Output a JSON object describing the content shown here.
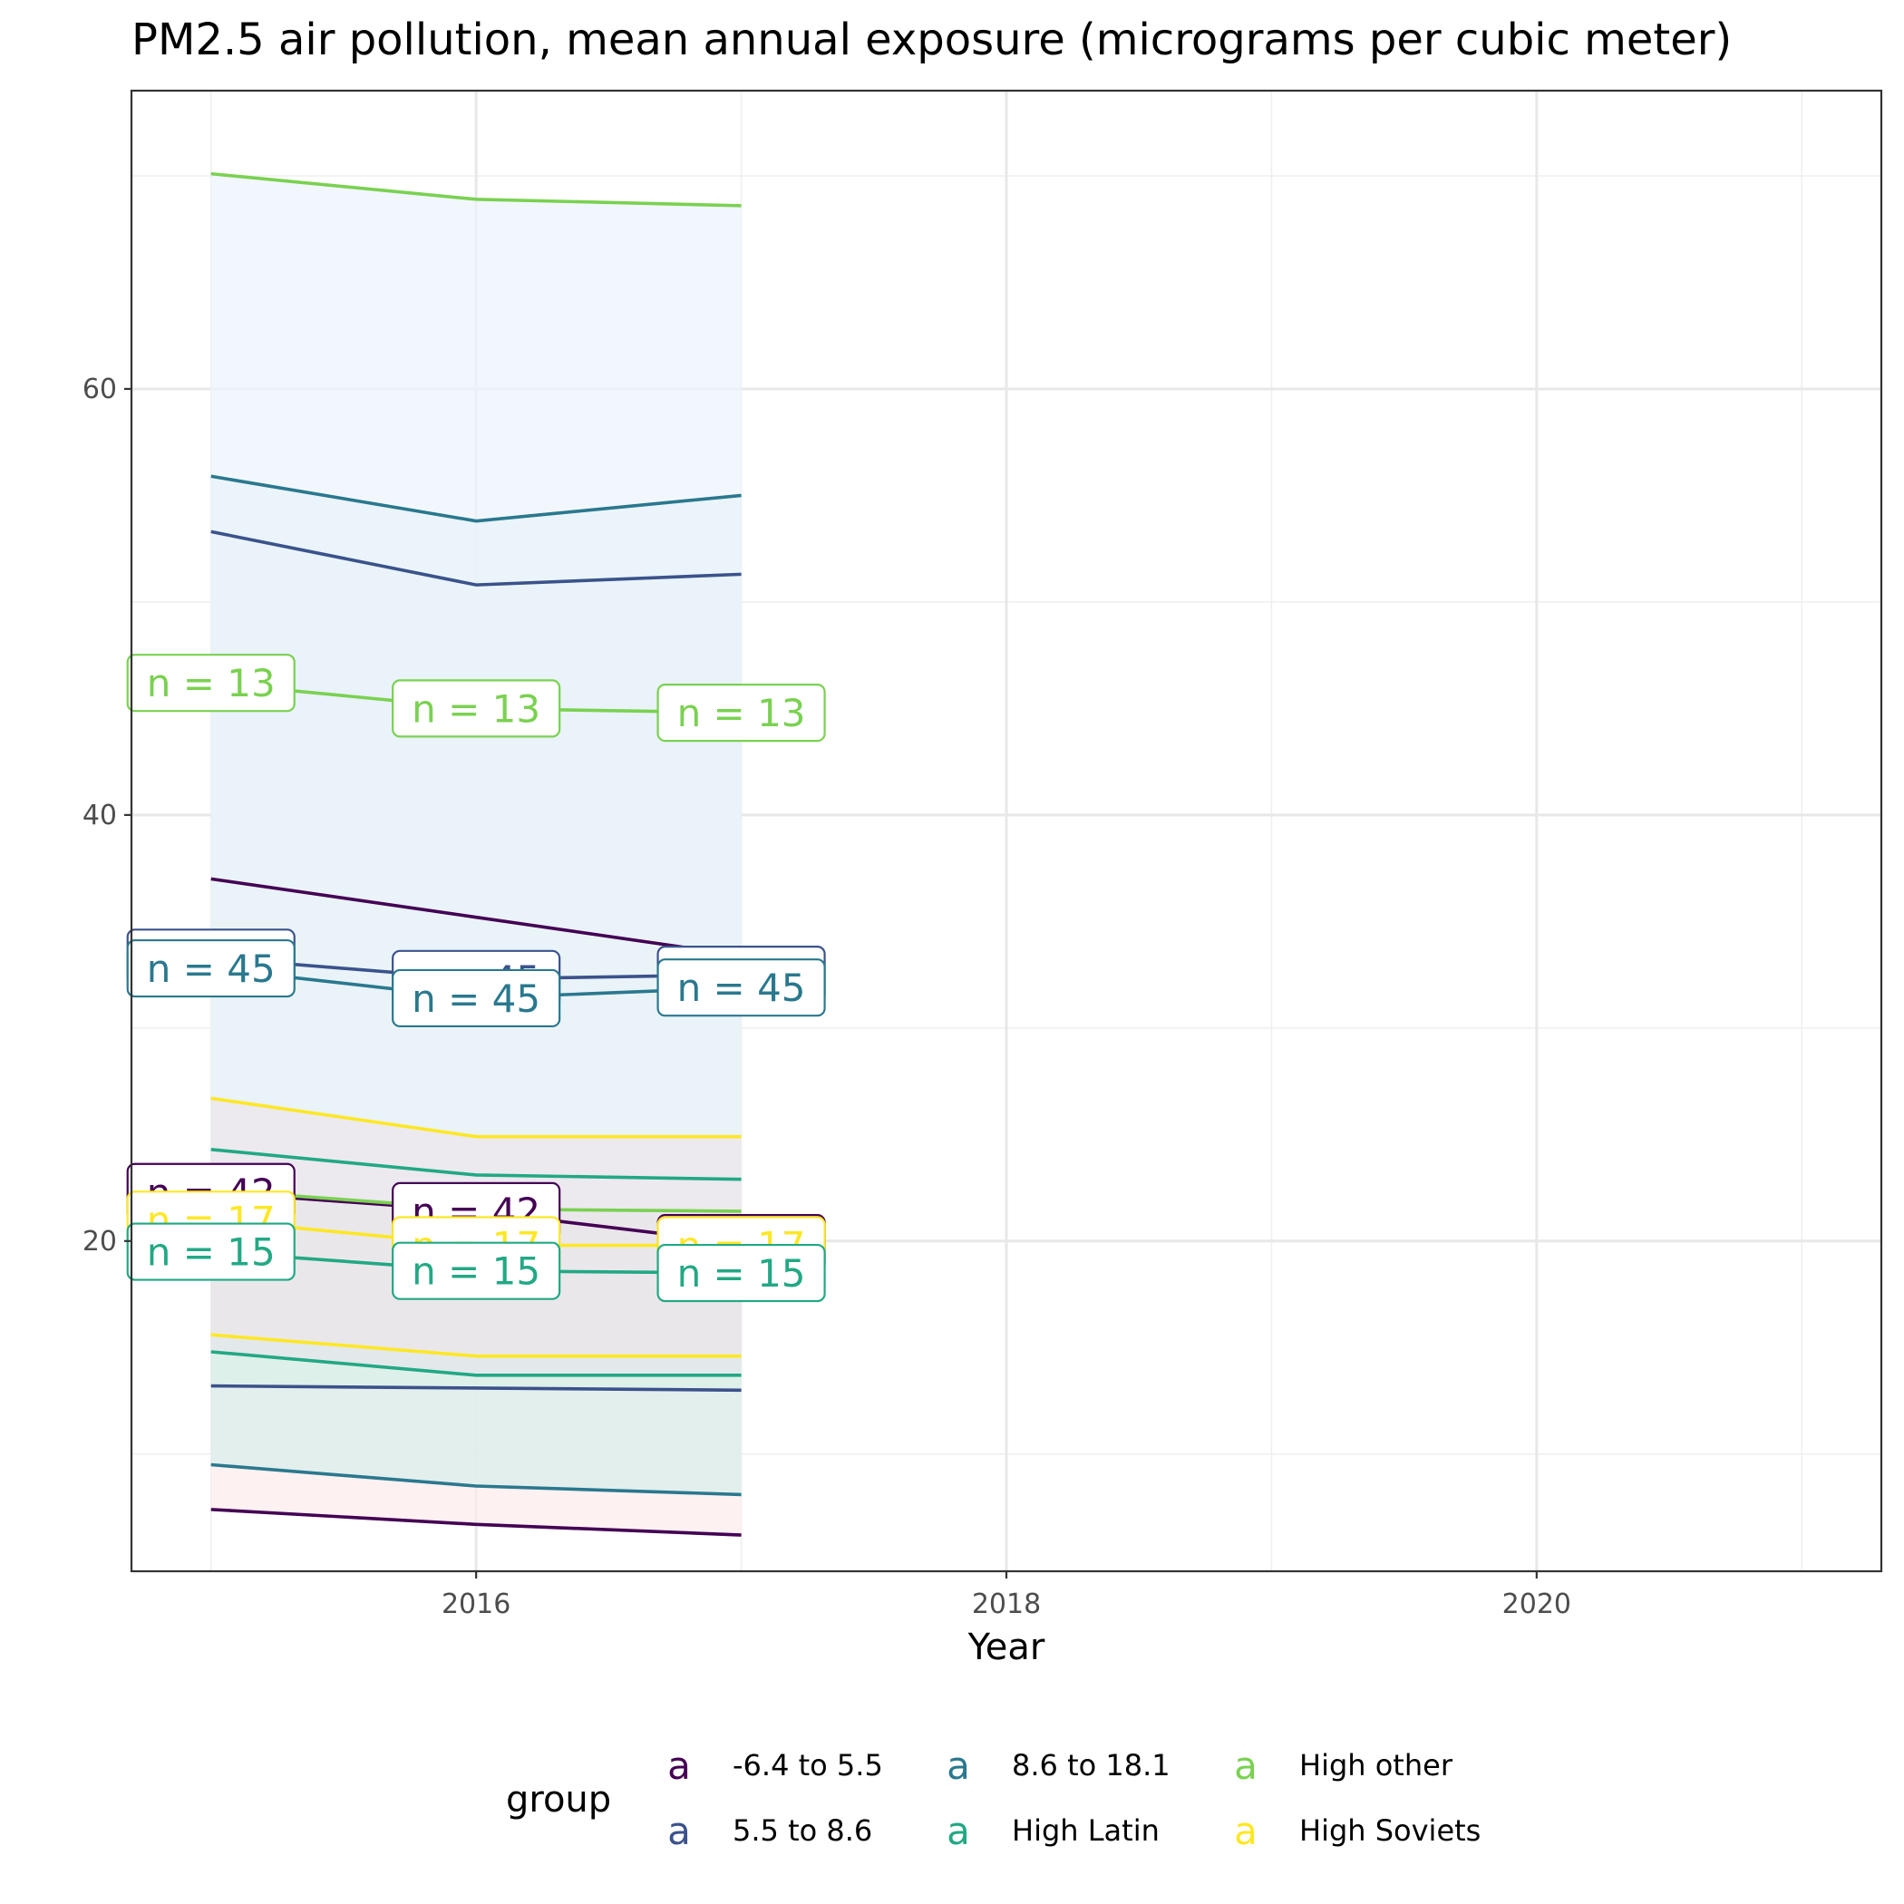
{
  "chart_data": {
    "type": "line",
    "title": "PM2.5 air pollution, mean annual exposure (micrograms per cubic meter)",
    "xlabel": "Year",
    "ylabel": "",
    "xlim": [
      2014.7,
      2021.3
    ],
    "ylim": [
      4.5,
      74
    ],
    "x_ticks": [
      2016,
      2018,
      2020
    ],
    "y_ticks": [
      20,
      40,
      60
    ],
    "grid": true,
    "legend": {
      "title": "group",
      "position": "bottom",
      "key_glyph": "a"
    },
    "x": [
      2015,
      2016,
      2017
    ],
    "series": [
      {
        "name": "-6.4 to 5.5",
        "color": "#440154",
        "lower": [
          7.4,
          6.7,
          6.2
        ],
        "mean": [
          22.3,
          21.4,
          19.9
        ],
        "upper": [
          37.0,
          35.2,
          33.4
        ],
        "fill": "#fdecec",
        "n": [
          42,
          42,
          42
        ]
      },
      {
        "name": "5.5 to 8.6",
        "color": "#3b528b",
        "lower": [
          13.2,
          13.1,
          13.0
        ],
        "mean": [
          33.3,
          32.3,
          32.5
        ],
        "upper": [
          53.3,
          50.8,
          51.3
        ],
        "fill": "#e8f3e1",
        "n": [
          45,
          45,
          45
        ]
      },
      {
        "name": "8.6 to 18.1",
        "color": "#2a788e",
        "lower": [
          9.5,
          8.5,
          8.1
        ],
        "mean": [
          32.8,
          31.4,
          31.9
        ],
        "upper": [
          55.9,
          53.8,
          55.0
        ],
        "fill": "#d8eeec",
        "n": [
          45,
          45,
          45
        ]
      },
      {
        "name": "High Latin",
        "color": "#22a884",
        "lower": [
          14.8,
          13.7,
          13.7
        ],
        "mean": [
          19.5,
          18.6,
          18.5
        ],
        "upper": [
          24.3,
          23.1,
          22.9
        ],
        "fill": "#e4e4ec",
        "n": [
          15,
          15,
          15
        ]
      },
      {
        "name": "High other",
        "color": "#7ad151",
        "lower": [
          22.4,
          21.5,
          21.4
        ],
        "mean": [
          46.2,
          45.0,
          44.8
        ],
        "upper": [
          70.1,
          68.9,
          68.6
        ],
        "fill": "#edf4fd",
        "n": [
          13,
          13,
          13
        ]
      },
      {
        "name": "High Soviets",
        "color": "#fde725",
        "lower": [
          15.6,
          14.6,
          14.6
        ],
        "mean": [
          21.0,
          19.8,
          19.8
        ],
        "upper": [
          26.7,
          24.9,
          24.9
        ],
        "fill": "#ede6ea",
        "n": [
          17,
          17,
          17
        ]
      }
    ],
    "n_label_prefix": "n = "
  }
}
